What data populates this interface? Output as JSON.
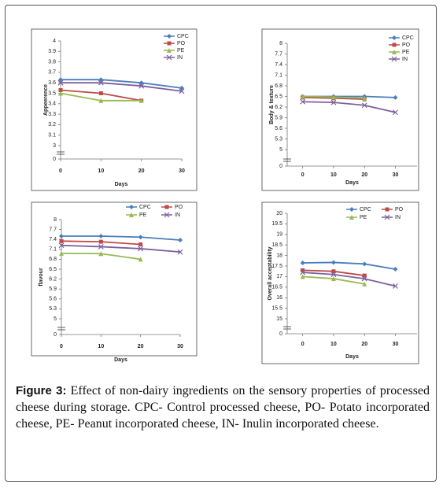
{
  "chart_data": [
    {
      "type": "line",
      "ylabel": "Appeerence",
      "xlabel": "Days",
      "legend": "right",
      "x": [
        0,
        10,
        20,
        30
      ],
      "xlim": [
        0,
        30
      ],
      "xticks": [
        0,
        10,
        20,
        30
      ],
      "ylim": [
        3,
        4
      ],
      "yticks": [
        0,
        3,
        3.1,
        3.2,
        3.3,
        3.4,
        3.5,
        3.6,
        3.7,
        3.8,
        3.9,
        4
      ],
      "axis_break": true,
      "series": [
        {
          "name": "CPC",
          "color": "#4a7ebb",
          "marker": "diamond",
          "values": [
            3.63,
            3.63,
            3.6,
            3.55
          ]
        },
        {
          "name": "PO",
          "color": "#be4b48",
          "marker": "square",
          "values": [
            3.53,
            3.5,
            3.43,
            null
          ]
        },
        {
          "name": "PE",
          "color": "#98b954",
          "marker": "triangle",
          "values": [
            3.5,
            3.43,
            3.43,
            null
          ]
        },
        {
          "name": "IN",
          "color": "#7d60a0",
          "marker": "x",
          "values": [
            3.6,
            3.6,
            3.57,
            3.52
          ]
        }
      ]
    },
    {
      "type": "line",
      "ylabel": "Body & texture",
      "xlabel": "Days",
      "legend": "right",
      "x": [
        0,
        10,
        20,
        30
      ],
      "xlim": [
        -5,
        37
      ],
      "xticks": [
        0,
        10,
        20,
        30
      ],
      "ylim": [
        5,
        8
      ],
      "yticks": [
        0,
        5,
        5.3,
        5.6,
        5.9,
        6.2,
        6.5,
        6.8,
        7.1,
        7.4,
        7.7,
        8
      ],
      "axis_break": true,
      "series": [
        {
          "name": "CPC",
          "color": "#4a7ebb",
          "marker": "diamond",
          "values": [
            6.5,
            6.5,
            6.5,
            6.47
          ]
        },
        {
          "name": "PO",
          "color": "#be4b48",
          "marker": "square",
          "values": [
            6.47,
            6.45,
            6.42,
            null
          ]
        },
        {
          "name": "PE",
          "color": "#98b954",
          "marker": "triangle",
          "values": [
            6.5,
            6.48,
            6.45,
            null
          ]
        },
        {
          "name": "IN",
          "color": "#7d60a0",
          "marker": "x",
          "values": [
            6.35,
            6.33,
            6.25,
            6.05
          ]
        }
      ]
    },
    {
      "type": "line",
      "ylabel": "flavour",
      "xlabel": "Days",
      "legend": "top",
      "x": [
        0,
        10,
        20,
        30
      ],
      "xlim": [
        0,
        30
      ],
      "xticks": [
        0,
        10,
        20,
        30
      ],
      "ylim": [
        5,
        8
      ],
      "yticks": [
        0,
        5,
        5.3,
        5.6,
        5.9,
        6.2,
        6.5,
        6.8,
        7.1,
        7.4,
        7.7,
        8
      ],
      "axis_break": true,
      "series": [
        {
          "name": "CPC",
          "color": "#4a7ebb",
          "marker": "diamond",
          "values": [
            7.5,
            7.5,
            7.47,
            7.38
          ]
        },
        {
          "name": "PO",
          "color": "#be4b48",
          "marker": "square",
          "values": [
            7.35,
            7.33,
            7.25,
            null
          ]
        },
        {
          "name": "PE",
          "color": "#98b954",
          "marker": "triangle",
          "values": [
            6.98,
            6.97,
            6.8,
            null
          ]
        },
        {
          "name": "IN",
          "color": "#7d60a0",
          "marker": "x",
          "values": [
            7.22,
            7.18,
            7.12,
            7.02
          ]
        }
      ]
    },
    {
      "type": "line",
      "ylabel": "Overall acceptability",
      "xlabel": "Days",
      "legend": "top",
      "x": [
        0,
        10,
        20,
        30
      ],
      "xlim": [
        -5,
        37
      ],
      "xticks": [
        0,
        10,
        20,
        30
      ],
      "ylim": [
        15,
        20
      ],
      "yticks": [
        0,
        15,
        15.5,
        16,
        16.5,
        17,
        17.5,
        18,
        18.5,
        19,
        19.5,
        20
      ],
      "axis_break": true,
      "series": [
        {
          "name": "CPC",
          "color": "#4a7ebb",
          "marker": "diamond",
          "values": [
            17.65,
            17.67,
            17.6,
            17.35
          ]
        },
        {
          "name": "PO",
          "color": "#be4b48",
          "marker": "square",
          "values": [
            17.3,
            17.25,
            17.05,
            null
          ]
        },
        {
          "name": "PE",
          "color": "#98b954",
          "marker": "triangle",
          "values": [
            17.0,
            16.9,
            16.65,
            null
          ]
        },
        {
          "name": "IN",
          "color": "#7d60a0",
          "marker": "x",
          "values": [
            17.2,
            17.1,
            16.9,
            16.55
          ]
        }
      ]
    }
  ],
  "caption": {
    "label": "Figure 3:",
    "text": "Effect of non-dairy ingredients on the sensory properties of processed cheese during storage. CPC- Control processed cheese, PO- Potato incorporated cheese, PE- Peanut incorporated cheese, IN- Inulin incorporated cheese."
  }
}
